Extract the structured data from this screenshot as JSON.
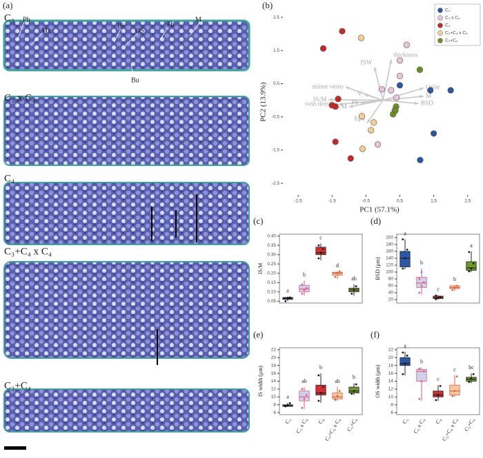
{
  "micrograph": {
    "panel": "(a)",
    "sections": [
      "C₃",
      "C₃ x C₄",
      "C₄",
      "C₃+C₄ x C₄",
      "C₃+C₄"
    ],
    "annotations": [
      "Ph",
      "Mx",
      "IS",
      "OS",
      "Fb",
      "M",
      "Bu"
    ]
  },
  "chart_data": [
    {
      "type": "scatter",
      "panel": "(b)",
      "xlabel": "PC1 (57.1%)",
      "ylabel": "PC2 (13.9%)",
      "xlim": [
        -2.95,
        2.75
      ],
      "ylim": [
        -2.85,
        2.75
      ],
      "xticks": [
        -2.5,
        -1.5,
        -0.5,
        0.5,
        1.5,
        2.5
      ],
      "yticks": [
        -2.5,
        -1.5,
        -0.5,
        0.5,
        1.5,
        2.5
      ],
      "series": [
        {
          "name": "C₃",
          "color": "#2b58a6",
          "x": [
            1.4,
            2.0,
            1.5,
            1.1,
            0.5
          ],
          "values": [
            0.3,
            0.3,
            -1.0,
            -1.8,
            0.45
          ]
        },
        {
          "name": "C₃ x C₄",
          "color": "#ecc2dc",
          "x": [
            0.7,
            0.5,
            0.5,
            0.24,
            -0.03,
            0.4,
            -0.15,
            0.35
          ],
          "values": [
            1.67,
            1.2,
            0.73,
            0.3,
            0.33,
            0.08,
            -1.33,
            -0.3
          ]
        },
        {
          "name": "C₄",
          "color": "#c62828",
          "x": [
            -1.2,
            -1.76,
            -1.32,
            -1.5,
            -1.4,
            -1.4,
            -0.95
          ],
          "values": [
            2.08,
            1.56,
            0.04,
            -0.15,
            -0.19,
            -1.25,
            -1.75
          ]
        },
        {
          "name": "C₃+C₄ x C₄",
          "color": "#f6cf92",
          "x": [
            -0.64,
            -0.62,
            -0.27,
            -0.6,
            -0.35
          ],
          "values": [
            1.88,
            -0.48,
            -0.67,
            -1.46,
            -0.9
          ]
        },
        {
          "name": "C₃+C₄",
          "color": "#6b8e23",
          "x": [
            1.09,
            0.39,
            0.3,
            0.37
          ],
          "values": [
            0.92,
            -0.19,
            -0.42,
            -0.31
          ]
        }
      ],
      "loadings": [
        {
          "name": "thickness",
          "x": 0.25,
          "y": 1.23
        },
        {
          "name": "ISW",
          "x": -0.25,
          "y": 1.0
        },
        {
          "name": "minor veins",
          "x": -1.1,
          "y": 0.4
        },
        {
          "name": "V",
          "x": -0.55,
          "y": 0.18
        },
        {
          "name": "IS/M",
          "x": -1.6,
          "y": 0.02
        },
        {
          "name": "vein density",
          "x": -1.3,
          "y": -0.12
        },
        {
          "name": "OS/M",
          "x": -1.0,
          "y": -0.2
        },
        {
          "name": "Fb",
          "x": -0.66,
          "y": -0.08
        },
        {
          "name": "Epd",
          "x": -0.47,
          "y": -0.69
        },
        {
          "name": "OSW",
          "x": 1.2,
          "y": 0.37
        },
        {
          "name": "M",
          "x": 1.2,
          "y": 0.12
        },
        {
          "name": "BSD",
          "x": 1.05,
          "y": -0.1
        }
      ]
    },
    {
      "type": "box",
      "panel": "(c)",
      "ylabel": "IS/M",
      "ylim": [
        0.04,
        0.41
      ],
      "yticks": [
        0.05,
        {
          "value": 0.1,
          "label": "0.10"
        },
        0.15,
        {
          "value": 0.2,
          "label": "0.20"
        },
        0.25,
        {
          "value": 0.3,
          "label": "0.30"
        },
        0.35,
        {
          "value": 0.4,
          "label": "0.40"
        }
      ],
      "boxes": [
        {
          "fill": "#2b58a6",
          "color": "#222222",
          "whislo": 0.05,
          "q1": 0.06,
          "med": 0.065,
          "q3": 0.07,
          "whishi": 0.075,
          "letter": "a",
          "points": [
            0.05,
            0.065,
            0.07
          ]
        },
        {
          "fill": "#cdd3ef",
          "color": "#e05a7a",
          "whislo": 0.08,
          "q1": 0.1,
          "med": 0.115,
          "q3": 0.135,
          "whishi": 0.16,
          "letter": "b",
          "points": [
            0.09,
            0.11,
            0.12,
            0.14
          ]
        },
        {
          "fill": "#d32f2f",
          "color": "#222222",
          "whislo": 0.27,
          "q1": 0.3,
          "med": 0.31,
          "q3": 0.34,
          "whishi": 0.36,
          "letter": "c",
          "points": [
            0.28,
            0.31,
            0.33,
            0.35
          ]
        },
        {
          "fill": "#f4c8a0",
          "color": "#e0603a",
          "whislo": 0.17,
          "q1": 0.19,
          "med": 0.2,
          "q3": 0.205,
          "whishi": 0.21,
          "letter": "d",
          "points": [
            0.18,
            0.2,
            0.21
          ]
        },
        {
          "fill": "#6b9a2a",
          "color": "#222222",
          "whislo": 0.08,
          "q1": 0.1,
          "med": 0.11,
          "q3": 0.12,
          "whishi": 0.14,
          "letter": "ab",
          "points": [
            0.09,
            0.11,
            0.13
          ]
        }
      ]
    },
    {
      "type": "box",
      "panel": "(d)",
      "ylabel": "BSD (μm)",
      "ylim": [
        10,
        210
      ],
      "yticks": [
        20,
        40,
        60,
        80,
        100,
        120,
        140,
        160,
        180,
        200
      ],
      "boxes": [
        {
          "fill": "#2b58a6",
          "color": "#222222",
          "whislo": 108,
          "q1": 115,
          "med": 140,
          "q3": 160,
          "whishi": 195,
          "letter": "a",
          "points": [
            110,
            140,
            165,
            195
          ]
        },
        {
          "fill": "#cdd3ef",
          "color": "#e05a7a",
          "whislo": 35,
          "q1": 55,
          "med": 68,
          "q3": 85,
          "whishi": 110,
          "letter": "b",
          "points": [
            40,
            60,
            70,
            80,
            100
          ]
        },
        {
          "fill": "#d32f2f",
          "color": "#222222",
          "whislo": 20,
          "q1": 23,
          "med": 26,
          "q3": 30,
          "whishi": 33,
          "letter": "c",
          "points": [
            21,
            25,
            28,
            32
          ]
        },
        {
          "fill": "#f4c8a0",
          "color": "#e0603a",
          "whislo": 45,
          "q1": 52,
          "med": 55,
          "q3": 60,
          "whishi": 62,
          "letter": "b",
          "points": [
            48,
            55,
            60
          ]
        },
        {
          "fill": "#6b9a2a",
          "color": "#222222",
          "whislo": 100,
          "q1": 105,
          "med": 112,
          "q3": 130,
          "whishi": 160,
          "letter": "a",
          "points": [
            102,
            110,
            125,
            158
          ]
        }
      ]
    },
    {
      "type": "box",
      "panel": "(e)",
      "ylabel": "IS width (μm)",
      "ylim": [
        5.5,
        22.5
      ],
      "yticks": [
        6,
        8,
        10,
        12,
        14,
        16,
        18,
        20,
        22
      ],
      "categories": [
        "C₃",
        "C₃ x C₄",
        "C₄",
        "C₃+C₄ x C₄",
        "C₃+C₄"
      ],
      "boxes": [
        {
          "fill": "#2b58a6",
          "color": "#222222",
          "whislo": 7.5,
          "q1": 7.6,
          "med": 7.8,
          "q3": 8.0,
          "whishi": 8.5,
          "letter": "a",
          "points": [
            7.6,
            7.9,
            8.4
          ]
        },
        {
          "fill": "#cdd3ef",
          "color": "#e05a7a",
          "whislo": 7,
          "q1": 9,
          "med": 10,
          "q3": 11.5,
          "whishi": 12.5,
          "letter": "ab",
          "points": [
            7.2,
            9.5,
            10.5,
            12
          ]
        },
        {
          "fill": "#d32f2f",
          "color": "#222222",
          "whislo": 8.5,
          "q1": 10.5,
          "med": 11,
          "q3": 13,
          "whishi": 16,
          "letter": "b",
          "points": [
            9,
            11,
            12.5,
            15.5
          ]
        },
        {
          "fill": "#f4c8a0",
          "color": "#e0603a",
          "whislo": 9,
          "q1": 9.5,
          "med": 10,
          "q3": 11,
          "whishi": 12.5,
          "letter": "ab",
          "points": [
            9.3,
            10.2,
            11.5
          ]
        },
        {
          "fill": "#6b9a2a",
          "color": "#222222",
          "whislo": 10.5,
          "q1": 11,
          "med": 11.5,
          "q3": 12.5,
          "whishi": 13.5,
          "letter": "b",
          "points": [
            10.8,
            11.5,
            13.2
          ]
        }
      ]
    },
    {
      "type": "box",
      "panel": "(f)",
      "ylabel": "OS width (μm)",
      "ylim": [
        5.5,
        22.5
      ],
      "yticks": [
        6,
        8,
        10,
        12,
        14,
        16,
        18,
        20,
        22
      ],
      "categories": [
        "C₃",
        "C₃ x C₄",
        "C₄",
        "C₃+C₄ x C₄",
        "C₃+C₄"
      ],
      "boxes": [
        {
          "fill": "#2b58a6",
          "color": "#222222",
          "whislo": 15.5,
          "q1": 18,
          "med": 18.5,
          "q3": 20,
          "whishi": 21.5,
          "letter": "a",
          "points": [
            15.8,
            18.5,
            20.5,
            21.3
          ]
        },
        {
          "fill": "#cdd3ef",
          "color": "#e05a7a",
          "whislo": 9,
          "q1": 14,
          "med": 16.5,
          "q3": 17,
          "whishi": 17.5,
          "letter": "b",
          "points": [
            9.5,
            14,
            16.5,
            17.2
          ]
        },
        {
          "fill": "#d32f2f",
          "color": "#222222",
          "whislo": 9,
          "q1": 10,
          "med": 10.5,
          "q3": 11.5,
          "whishi": 13,
          "letter": "c",
          "points": [
            9.2,
            10.5,
            12.8
          ]
        },
        {
          "fill": "#f4c8a0",
          "color": "#e0603a",
          "whislo": 10,
          "q1": 10.5,
          "med": 11.5,
          "q3": 13,
          "whishi": 15.5,
          "letter": "c",
          "points": [
            10.2,
            11.5,
            15.2
          ]
        },
        {
          "fill": "#6b9a2a",
          "color": "#222222",
          "whislo": 13.5,
          "q1": 14,
          "med": 14.5,
          "q3": 15,
          "whishi": 16,
          "letter": "bc",
          "points": [
            13.8,
            14.6,
            15.8
          ]
        }
      ]
    }
  ]
}
